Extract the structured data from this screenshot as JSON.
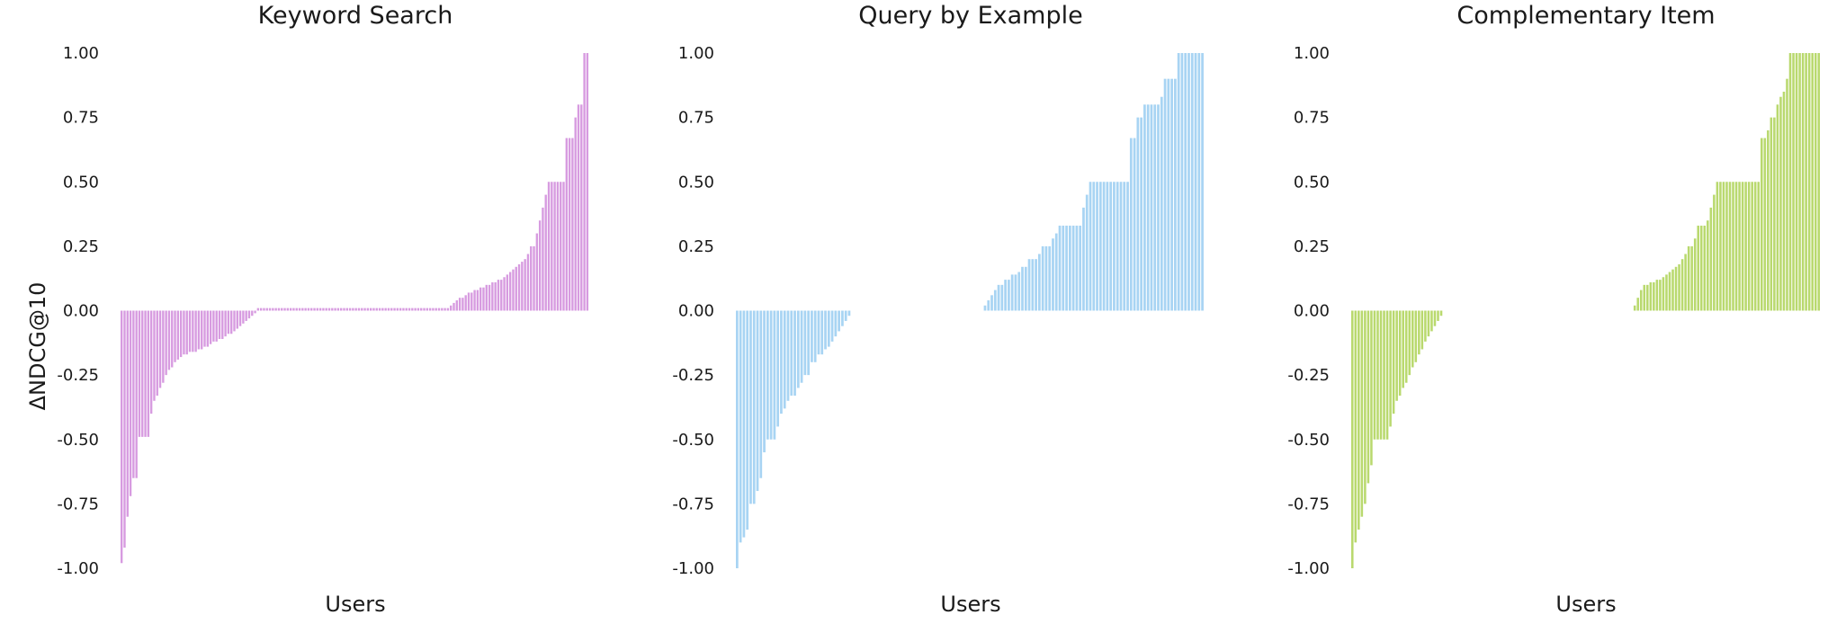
{
  "ylabel": "ΔNDCG@10",
  "colors": {
    "Keyword Search": "#d79be0",
    "Query by Example": "#a8d4f3",
    "Complementary Item": "#b9d96e"
  },
  "chart_data": [
    {
      "type": "bar",
      "title": "Keyword Search",
      "xlabel": "Users",
      "ylabel": "ΔNDCG@10",
      "ylim": [
        -1.0,
        1.0
      ],
      "yticks": [
        "1.00",
        "0.75",
        "0.50",
        "0.25",
        "0.00",
        "-0.25",
        "-0.50",
        "-0.75",
        "-1.00"
      ],
      "grid": false,
      "color": "#d79be0",
      "values": [
        -0.98,
        -0.92,
        -0.8,
        -0.72,
        -0.65,
        -0.65,
        -0.49,
        -0.49,
        -0.49,
        -0.49,
        -0.4,
        -0.35,
        -0.33,
        -0.3,
        -0.28,
        -0.25,
        -0.23,
        -0.22,
        -0.2,
        -0.19,
        -0.18,
        -0.17,
        -0.17,
        -0.16,
        -0.16,
        -0.16,
        -0.15,
        -0.15,
        -0.14,
        -0.14,
        -0.13,
        -0.12,
        -0.12,
        -0.11,
        -0.11,
        -0.1,
        -0.09,
        -0.09,
        -0.08,
        -0.07,
        -0.06,
        -0.05,
        -0.04,
        -0.03,
        -0.02,
        -0.01,
        0.01,
        0.01,
        0.01,
        0.01,
        0.01,
        0.01,
        0.01,
        0.01,
        0.01,
        0.01,
        0.01,
        0.01,
        0.01,
        0.01,
        0.01,
        0.01,
        0.01,
        0.01,
        0.01,
        0.01,
        0.01,
        0.01,
        0.01,
        0.01,
        0.01,
        0.01,
        0.01,
        0.01,
        0.01,
        0.01,
        0.01,
        0.01,
        0.01,
        0.01,
        0.01,
        0.01,
        0.01,
        0.01,
        0.01,
        0.01,
        0.01,
        0.01,
        0.01,
        0.01,
        0.01,
        0.01,
        0.01,
        0.01,
        0.01,
        0.01,
        0.01,
        0.01,
        0.01,
        0.01,
        0.01,
        0.01,
        0.01,
        0.01,
        0.01,
        0.01,
        0.01,
        0.01,
        0.01,
        0.01,
        0.01,
        0.02,
        0.03,
        0.04,
        0.05,
        0.05,
        0.06,
        0.07,
        0.07,
        0.08,
        0.08,
        0.09,
        0.09,
        0.1,
        0.1,
        0.11,
        0.11,
        0.12,
        0.12,
        0.13,
        0.14,
        0.15,
        0.16,
        0.17,
        0.18,
        0.19,
        0.2,
        0.22,
        0.25,
        0.25,
        0.3,
        0.35,
        0.4,
        0.45,
        0.5,
        0.5,
        0.5,
        0.5,
        0.5,
        0.5,
        0.67,
        0.67,
        0.67,
        0.75,
        0.8,
        0.8,
        1.0,
        1.0
      ]
    },
    {
      "type": "bar",
      "title": "Query by Example",
      "xlabel": "Users",
      "ylabel": "",
      "ylim": [
        -1.0,
        1.0
      ],
      "yticks": [
        "1.00",
        "0.75",
        "0.50",
        "0.25",
        "0.00",
        "-0.25",
        "-0.50",
        "-0.75",
        "-1.00"
      ],
      "grid": false,
      "color": "#a8d4f3",
      "values": [
        -1.0,
        -0.9,
        -0.88,
        -0.85,
        -0.75,
        -0.75,
        -0.7,
        -0.65,
        -0.55,
        -0.5,
        -0.5,
        -0.5,
        -0.45,
        -0.4,
        -0.38,
        -0.35,
        -0.33,
        -0.33,
        -0.3,
        -0.28,
        -0.25,
        -0.25,
        -0.2,
        -0.2,
        -0.17,
        -0.17,
        -0.15,
        -0.14,
        -0.12,
        -0.1,
        -0.08,
        -0.06,
        -0.04,
        -0.02,
        0.0,
        0.0,
        0.0,
        0.0,
        0.0,
        0.0,
        0.0,
        0.0,
        0.0,
        0.0,
        0.0,
        0.0,
        0.0,
        0.0,
        0.0,
        0.0,
        0.0,
        0.0,
        0.0,
        0.0,
        0.0,
        0.0,
        0.0,
        0.0,
        0.0,
        0.0,
        0.0,
        0.0,
        0.0,
        0.0,
        0.0,
        0.0,
        0.0,
        0.0,
        0.0,
        0.0,
        0.0,
        0.0,
        0.0,
        0.02,
        0.04,
        0.06,
        0.08,
        0.1,
        0.1,
        0.12,
        0.12,
        0.14,
        0.14,
        0.15,
        0.17,
        0.17,
        0.2,
        0.2,
        0.2,
        0.22,
        0.25,
        0.25,
        0.25,
        0.28,
        0.3,
        0.33,
        0.33,
        0.33,
        0.33,
        0.33,
        0.33,
        0.33,
        0.4,
        0.45,
        0.5,
        0.5,
        0.5,
        0.5,
        0.5,
        0.5,
        0.5,
        0.5,
        0.5,
        0.5,
        0.5,
        0.5,
        0.67,
        0.67,
        0.75,
        0.75,
        0.8,
        0.8,
        0.8,
        0.8,
        0.8,
        0.83,
        0.9,
        0.9,
        0.9,
        0.9,
        1.0,
        1.0,
        1.0,
        1.0,
        1.0,
        1.0,
        1.0,
        1.0
      ]
    },
    {
      "type": "bar",
      "title": "Complementary Item",
      "xlabel": "Users",
      "ylabel": "",
      "ylim": [
        -1.0,
        1.0
      ],
      "yticks": [
        "1.00",
        "0.75",
        "0.50",
        "0.25",
        "0.00",
        "-0.25",
        "-0.50",
        "-0.75",
        "-1.00"
      ],
      "grid": false,
      "color": "#b9d96e",
      "values": [
        -1.0,
        -0.9,
        -0.85,
        -0.8,
        -0.75,
        -0.67,
        -0.6,
        -0.5,
        -0.5,
        -0.5,
        -0.5,
        -0.5,
        -0.45,
        -0.4,
        -0.35,
        -0.33,
        -0.3,
        -0.28,
        -0.25,
        -0.22,
        -0.2,
        -0.17,
        -0.15,
        -0.12,
        -0.1,
        -0.08,
        -0.06,
        -0.04,
        -0.02,
        0.0,
        0.0,
        0.0,
        0.0,
        0.0,
        0.0,
        0.0,
        0.0,
        0.0,
        0.0,
        0.0,
        0.0,
        0.0,
        0.0,
        0.0,
        0.0,
        0.0,
        0.0,
        0.0,
        0.0,
        0.0,
        0.0,
        0.0,
        0.0,
        0.0,
        0.0,
        0.0,
        0.0,
        0.0,
        0.0,
        0.0,
        0.0,
        0.0,
        0.0,
        0.0,
        0.0,
        0.0,
        0.0,
        0.0,
        0.0,
        0.0,
        0.0,
        0.0,
        0.0,
        0.0,
        0.0,
        0.0,
        0.0,
        0.0,
        0.0,
        0.0,
        0.0,
        0.0,
        0.0,
        0.0,
        0.0,
        0.0,
        0.0,
        0.0,
        0.0,
        0.02,
        0.05,
        0.08,
        0.1,
        0.1,
        0.11,
        0.11,
        0.12,
        0.12,
        0.13,
        0.14,
        0.15,
        0.16,
        0.17,
        0.18,
        0.2,
        0.22,
        0.25,
        0.25,
        0.28,
        0.33,
        0.33,
        0.33,
        0.35,
        0.4,
        0.45,
        0.5,
        0.5,
        0.5,
        0.5,
        0.5,
        0.5,
        0.5,
        0.5,
        0.5,
        0.5,
        0.5,
        0.5,
        0.5,
        0.5,
        0.67,
        0.67,
        0.7,
        0.75,
        0.75,
        0.8,
        0.83,
        0.85,
        0.9,
        1.0,
        1.0,
        1.0,
        1.0,
        1.0,
        1.0,
        1.0,
        1.0,
        1.0,
        1.0
      ]
    }
  ]
}
